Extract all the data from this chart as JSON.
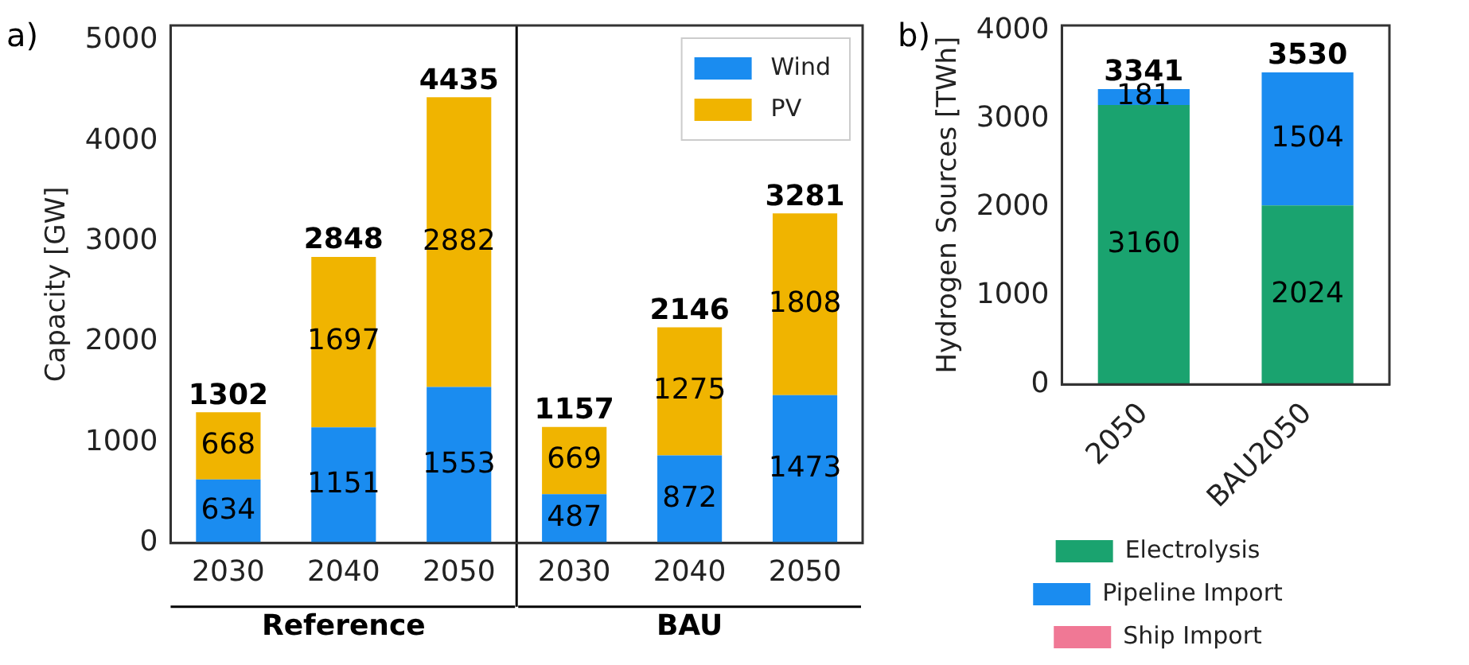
{
  "chart_data": [
    {
      "type": "bar",
      "stacked": true,
      "ylabel": "Capacity [GW]",
      "categories": [
        "2030",
        "2040",
        "2050",
        "2030",
        "2040",
        "2050"
      ],
      "series": [
        {
          "name": "Wind",
          "color": "#1a8cf0",
          "values": [
            634,
            1151,
            1553,
            487,
            872,
            1473
          ]
        },
        {
          "name": "PV",
          "color": "#f0b400",
          "values": [
            668,
            1697,
            2882,
            669,
            1275,
            1808
          ]
        }
      ],
      "data_labels": true,
      "totals": [
        "1302",
        "2848",
        "4435",
        "1157",
        "2146",
        "3281"
      ],
      "ylim": [
        0,
        5150
      ],
      "yticks": [
        0,
        1000,
        2000,
        3000,
        4000,
        5000
      ],
      "annotations": [
        "a)",
        "Reference",
        "BAU"
      ],
      "legend": "top right",
      "grid": false
    },
    {
      "type": "bar",
      "stacked": true,
      "ylabel": "Hydrogen Sources [TWh]",
      "categories": [
        "2050",
        "BAU2050"
      ],
      "series": [
        {
          "name": "Electrolysis",
          "color": "#1aa36f",
          "values": [
            3160,
            2024
          ],
          "value_labels": [
            "3160",
            "2024"
          ]
        },
        {
          "name": "Pipeline Import",
          "color": "#1a8cf0",
          "values": [
            181,
            1504
          ],
          "value_labels": [
            "181",
            "1504"
          ]
        },
        {
          "name": "Ship Import",
          "color": "#f07895",
          "values": [
            0,
            0
          ],
          "value_labels": [
            null,
            null
          ]
        }
      ],
      "totals": [
        "3341",
        "3530"
      ],
      "ylim": [
        0,
        4060
      ],
      "yticks": [
        0,
        1000,
        2000,
        3000,
        4000
      ],
      "annotations": [
        "b)"
      ],
      "legend": "bottom",
      "grid": false
    }
  ]
}
